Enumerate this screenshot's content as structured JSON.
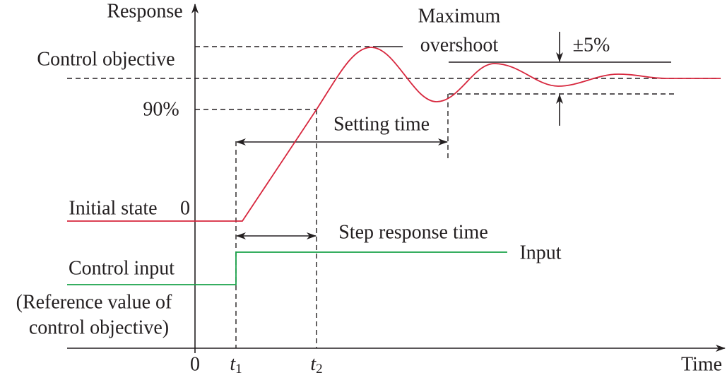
{
  "title": "Response",
  "labels": {
    "control_objective": "Control objective",
    "ninety_percent": "90%",
    "initial_state": "Initial state",
    "initial_zero": "0",
    "control_input": "Control input",
    "reference_line1": "(Reference value of",
    "reference_line2": "control objective)",
    "origin": "0",
    "t1": {
      "base": "t",
      "sub": "1"
    },
    "t2": {
      "base": "t",
      "sub": "2"
    },
    "time": "Time",
    "maximum": "Maximum",
    "overshoot": "overshoot",
    "tolerance": "±5%",
    "setting_time": "Setting time",
    "step_response_time": "Step response time",
    "input": "Input"
  }
}
